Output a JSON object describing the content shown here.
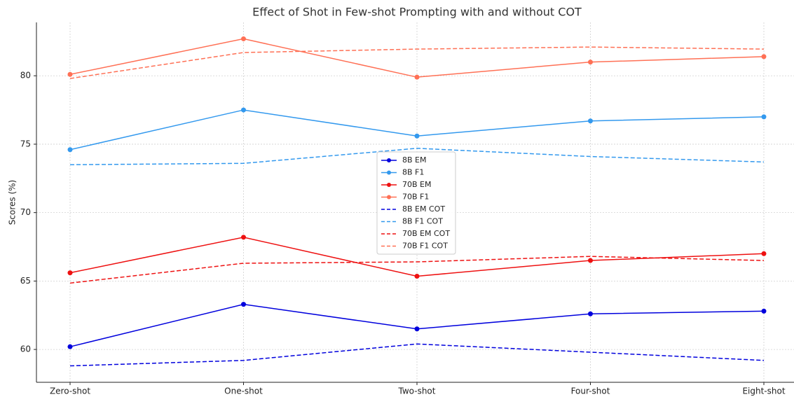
{
  "chart_data": {
    "type": "line",
    "title": "Effect of Shot in Few-shot Prompting with and without COT",
    "y_label": "Scores (%)",
    "categories": [
      "Zero-shot",
      "One-shot",
      "Two-shot",
      "Four-shot",
      "Eight-shot"
    ],
    "series": [
      {
        "name": "8B EM",
        "color": "#0000dd",
        "dash": false,
        "markers": true,
        "values": [
          60.2,
          63.3,
          61.5,
          62.6,
          62.8
        ]
      },
      {
        "name": "8B F1",
        "color": "#3399ee",
        "dash": false,
        "markers": true,
        "values": [
          74.6,
          77.5,
          75.6,
          76.7,
          77.0
        ]
      },
      {
        "name": "70B EM",
        "color": "#ee1111",
        "dash": false,
        "markers": true,
        "values": [
          65.6,
          68.2,
          65.35,
          66.5,
          67.0
        ]
      },
      {
        "name": "70B F1",
        "color": "#ff7055",
        "dash": false,
        "markers": true,
        "values": [
          80.1,
          82.7,
          79.9,
          81.0,
          81.4
        ]
      },
      {
        "name": "8B EM COT",
        "color": "#0000dd",
        "dash": true,
        "markers": false,
        "values": [
          58.8,
          59.2,
          60.4,
          59.8,
          59.2
        ]
      },
      {
        "name": "8B F1 COT",
        "color": "#3399ee",
        "dash": true,
        "markers": false,
        "values": [
          73.5,
          73.6,
          74.7,
          74.1,
          73.7
        ]
      },
      {
        "name": "70B EM COT",
        "color": "#ee1111",
        "dash": true,
        "markers": false,
        "values": [
          64.85,
          66.3,
          66.4,
          66.8,
          66.5
        ]
      },
      {
        "name": "70B F1 COT",
        "color": "#ff7055",
        "dash": true,
        "markers": false,
        "values": [
          79.8,
          81.7,
          81.95,
          82.1,
          81.95
        ]
      }
    ],
    "ylim": [
      57.6,
      83.9
    ],
    "yticks": [
      60,
      65,
      70,
      75,
      80
    ],
    "grid": true,
    "legend": "center"
  }
}
